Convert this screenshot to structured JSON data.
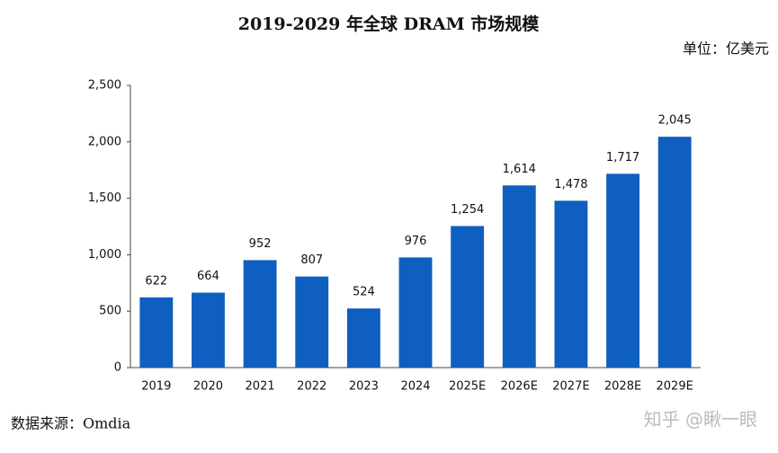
{
  "chart_data": {
    "type": "bar",
    "title": "2019-2029 年全球 DRAM 市场规模",
    "unit": "单位：亿美元",
    "categories": [
      "2019",
      "2020",
      "2021",
      "2022",
      "2023",
      "2024",
      "2025E",
      "2026E",
      "2027E",
      "2028E",
      "2029E"
    ],
    "values": [
      622,
      664,
      952,
      807,
      524,
      976,
      1254,
      1614,
      1478,
      1717,
      2045
    ],
    "value_labels": [
      "622",
      "664",
      "952",
      "807",
      "524",
      "976",
      "1,254",
      "1,614",
      "1,478",
      "1,717",
      "2,045"
    ],
    "color": "#0f5fc0",
    "ylim": [
      0,
      2500
    ],
    "yticks": [
      0,
      500,
      {
        "value": 1000,
        "label": "1,000"
      },
      {
        "value": 1500,
        "label": "1,500"
      },
      {
        "value": 2000,
        "label": "2,000"
      },
      {
        "value": 2500,
        "label": "2,500"
      }
    ],
    "grid": false,
    "source": "数据来源：Omdia",
    "watermark": "知乎 @瞅一眼"
  }
}
